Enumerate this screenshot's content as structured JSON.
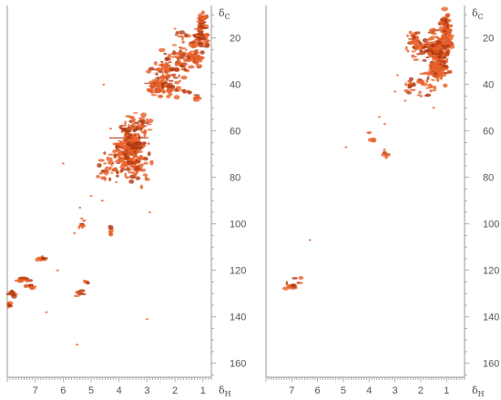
{
  "chart_data": [
    {
      "type": "scatter",
      "panel": "left",
      "title": "",
      "xlabel": "δH",
      "ylabel": "δC",
      "x_tick_labels": [
        "7",
        "6",
        "5",
        "4",
        "3",
        "2",
        "1"
      ],
      "y_tick_labels": [
        "20",
        "40",
        "60",
        "80",
        "100",
        "120",
        "140",
        "160"
      ],
      "xlim": [
        8.0,
        0.7
      ],
      "ylim": [
        6,
        166
      ],
      "x_reversed": true,
      "y_reversed": true,
      "grid": false,
      "legend": "none",
      "colors": {
        "peak": "#e8622a",
        "peak_dark": "#b23a12",
        "axis": "#9a9a9a"
      },
      "clusters": [
        {
          "x": 1.05,
          "y": 13,
          "sx": 0.1,
          "sy": 2,
          "n": 40
        },
        {
          "x": 1.0,
          "y": 21,
          "sx": 0.12,
          "sy": 2.5,
          "n": 50
        },
        {
          "x": 1.3,
          "y": 28,
          "sx": 0.15,
          "sy": 2,
          "n": 40
        },
        {
          "x": 1.6,
          "y": 22,
          "sx": 0.3,
          "sy": 3,
          "n": 30
        },
        {
          "x": 1.9,
          "y": 31,
          "sx": 0.3,
          "sy": 3,
          "n": 40
        },
        {
          "x": 2.3,
          "y": 34,
          "sx": 0.3,
          "sy": 3,
          "n": 40
        },
        {
          "x": 2.6,
          "y": 40,
          "sx": 0.2,
          "sy": 2,
          "n": 50
        },
        {
          "x": 2.2,
          "y": 42,
          "sx": 0.3,
          "sy": 2,
          "n": 30
        },
        {
          "x": 1.2,
          "y": 46,
          "sx": 0.08,
          "sy": 0.6,
          "n": 10
        },
        {
          "x": 3.6,
          "y": 64,
          "sx": 0.22,
          "sy": 4,
          "n": 150
        },
        {
          "x": 3.9,
          "y": 71,
          "sx": 0.25,
          "sy": 3,
          "n": 60
        },
        {
          "x": 3.5,
          "y": 76,
          "sx": 0.3,
          "sy": 3,
          "n": 60
        },
        {
          "x": 4.4,
          "y": 76,
          "sx": 0.15,
          "sy": 2,
          "n": 25
        },
        {
          "x": 3.2,
          "y": 58,
          "sx": 0.2,
          "sy": 3,
          "n": 25
        },
        {
          "x": 3.3,
          "y": 69,
          "sx": 0.2,
          "sy": 3,
          "n": 30
        },
        {
          "x": 5.3,
          "y": 100,
          "sx": 0.05,
          "sy": 1.5,
          "n": 8
        },
        {
          "x": 4.3,
          "y": 102,
          "sx": 0.05,
          "sy": 1,
          "n": 6
        },
        {
          "x": 6.75,
          "y": 115,
          "sx": 0.1,
          "sy": 0.4,
          "n": 14
        },
        {
          "x": 7.45,
          "y": 124,
          "sx": 0.12,
          "sy": 0.5,
          "n": 18
        },
        {
          "x": 7.2,
          "y": 127,
          "sx": 0.1,
          "sy": 0.6,
          "n": 10
        },
        {
          "x": 7.9,
          "y": 130,
          "sx": 0.1,
          "sy": 0.5,
          "n": 12
        },
        {
          "x": 7.9,
          "y": 135,
          "sx": 0.05,
          "sy": 0.5,
          "n": 6
        },
        {
          "x": 5.4,
          "y": 130,
          "sx": 0.1,
          "sy": 1,
          "n": 8
        },
        {
          "x": 5.15,
          "y": 125,
          "sx": 0.05,
          "sy": 0.5,
          "n": 5
        }
      ],
      "crosspeaks": [
        {
          "x": 3.65,
          "y": 63,
          "dx": 0.7,
          "dy": 6
        },
        {
          "x": 2.6,
          "y": 39.5,
          "dx": 0.5,
          "dy": 3
        },
        {
          "x": 1.3,
          "y": 29,
          "dx": 0.3,
          "dy": 2
        }
      ],
      "scatter": [
        {
          "x": 4.55,
          "y": 40
        },
        {
          "x": 6.0,
          "y": 74
        },
        {
          "x": 5.0,
          "y": 88
        },
        {
          "x": 4.6,
          "y": 90
        },
        {
          "x": 5.4,
          "y": 93
        },
        {
          "x": 5.6,
          "y": 104
        },
        {
          "x": 3.0,
          "y": 141
        },
        {
          "x": 6.6,
          "y": 138
        },
        {
          "x": 5.5,
          "y": 152
        },
        {
          "x": 0.6,
          "y": 40
        },
        {
          "x": 2.9,
          "y": 95
        },
        {
          "x": 2.5,
          "y": 45
        },
        {
          "x": 4.1,
          "y": 82
        },
        {
          "x": 4.3,
          "y": 59
        },
        {
          "x": 6.2,
          "y": 120
        },
        {
          "x": 7.0,
          "y": 127
        },
        {
          "x": 2.0,
          "y": 16
        },
        {
          "x": 3.2,
          "y": 55
        }
      ]
    },
    {
      "type": "scatter",
      "panel": "right",
      "title": "",
      "xlabel": "δH",
      "ylabel": "δC",
      "x_tick_labels": [
        "7",
        "6",
        "5",
        "4",
        "3",
        "2",
        "1"
      ],
      "y_tick_labels": [
        "20",
        "40",
        "60",
        "80",
        "100",
        "120",
        "140",
        "160"
      ],
      "xlim": [
        8.0,
        0.3
      ],
      "ylim": [
        6,
        166
      ],
      "x_reversed": true,
      "y_reversed": true,
      "grid": false,
      "legend": "none",
      "colors": {
        "peak": "#e8622a",
        "peak_dark": "#b23a12",
        "axis": "#9a9a9a"
      },
      "clusters": [
        {
          "x": 1.0,
          "y": 18,
          "sx": 0.12,
          "sy": 5,
          "n": 80
        },
        {
          "x": 1.3,
          "y": 27,
          "sx": 0.2,
          "sy": 4,
          "n": 140
        },
        {
          "x": 1.3,
          "y": 34,
          "sx": 0.2,
          "sy": 2,
          "n": 60
        },
        {
          "x": 1.6,
          "y": 23,
          "sx": 0.3,
          "sy": 3,
          "n": 50
        },
        {
          "x": 2.1,
          "y": 24,
          "sx": 0.25,
          "sy": 2,
          "n": 25
        },
        {
          "x": 1.8,
          "y": 40,
          "sx": 0.3,
          "sy": 3,
          "n": 20
        },
        {
          "x": 2.4,
          "y": 40,
          "sx": 0.1,
          "sy": 1.5,
          "n": 12
        },
        {
          "x": 2.2,
          "y": 19,
          "sx": 0.1,
          "sy": 1,
          "n": 10
        },
        {
          "x": 7.0,
          "y": 126,
          "sx": 0.15,
          "sy": 1.2,
          "n": 18
        },
        {
          "x": 3.3,
          "y": 70,
          "sx": 0.1,
          "sy": 1,
          "n": 6
        },
        {
          "x": 3.9,
          "y": 63,
          "sx": 0.08,
          "sy": 1,
          "n": 5
        }
      ],
      "crosspeaks": [
        {
          "x": 1.3,
          "y": 27,
          "dx": 0.25,
          "dy": 3
        },
        {
          "x": 1.25,
          "y": 33.5,
          "dx": 0.2,
          "dy": 2
        }
      ],
      "scatter": [
        {
          "x": 6.3,
          "y": 107
        },
        {
          "x": 4.9,
          "y": 67
        },
        {
          "x": 3.6,
          "y": 54
        },
        {
          "x": 3.4,
          "y": 57
        },
        {
          "x": 3.0,
          "y": 43
        },
        {
          "x": 2.6,
          "y": 47
        },
        {
          "x": 2.2,
          "y": 28
        },
        {
          "x": 1.5,
          "y": 50
        },
        {
          "x": 4.0,
          "y": 61
        },
        {
          "x": 2.9,
          "y": 36
        }
      ]
    }
  ]
}
